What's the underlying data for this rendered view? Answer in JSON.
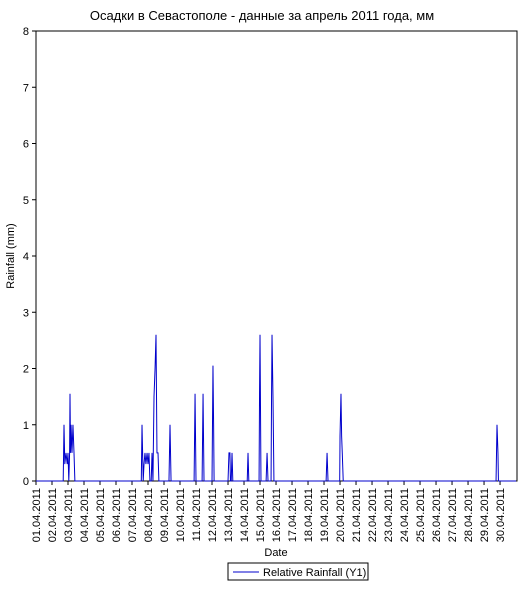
{
  "chart_data": {
    "type": "line",
    "title": "Осадки в Севастополе - данные за апрель 2011 года, мм",
    "x_label": "Date",
    "y_label": "Rainfall (mm)",
    "xlim": [
      1,
      31.06
    ],
    "ylim": [
      0,
      8
    ],
    "yticks": [
      0,
      1,
      2,
      3,
      4,
      5,
      6,
      7,
      8
    ],
    "xticks": [
      {
        "value": 1,
        "label": "01.04.2011"
      },
      {
        "value": 2,
        "label": "02.04.2011"
      },
      {
        "value": 3,
        "label": "03.04.2011"
      },
      {
        "value": 4,
        "label": "04.04.2011"
      },
      {
        "value": 5,
        "label": "05.04.2011"
      },
      {
        "value": 6,
        "label": "06.04.2011"
      },
      {
        "value": 7,
        "label": "07.04.2011"
      },
      {
        "value": 8,
        "label": "08.04.2011"
      },
      {
        "value": 9,
        "label": "09.04.2011"
      },
      {
        "value": 10,
        "label": "10.04.2011"
      },
      {
        "value": 11,
        "label": "11.04.2011"
      },
      {
        "value": 12,
        "label": "12.04.2011"
      },
      {
        "value": 13,
        "label": "13.04.2011"
      },
      {
        "value": 14,
        "label": "14.04.2011"
      },
      {
        "value": 15,
        "label": "15.04.2011"
      },
      {
        "value": 16,
        "label": "16.04.2011"
      },
      {
        "value": 17,
        "label": "17.04.2011"
      },
      {
        "value": 18,
        "label": "18.04.2011"
      },
      {
        "value": 19,
        "label": "19.04.2011"
      },
      {
        "value": 20,
        "label": "20.04.2011"
      },
      {
        "value": 21,
        "label": "21.04.2011"
      },
      {
        "value": 22,
        "label": "22.04.2011"
      },
      {
        "value": 23,
        "label": "23.04.2011"
      },
      {
        "value": 24,
        "label": "24.04.2011"
      },
      {
        "value": 25,
        "label": "25.04.2011"
      },
      {
        "value": 26,
        "label": "26.04.2011"
      },
      {
        "value": 27,
        "label": "27.04.2011"
      },
      {
        "value": 28,
        "label": "28.04.2011"
      },
      {
        "value": 29,
        "label": "29.04.2011"
      },
      {
        "value": 30,
        "label": "30.04.2011"
      }
    ],
    "x": [
      1,
      2.7,
      2.75,
      2.8,
      2.875,
      2.95,
      3.0,
      3.05,
      3.1,
      3.125,
      3.16,
      3.19,
      3.25,
      3.31,
      3.375,
      3.43,
      7.58,
      7.625,
      7.7,
      7.75,
      7.81,
      7.87,
      7.94,
      8.0,
      8.06,
      8.12,
      8.2,
      8.25,
      8.31,
      8.33,
      8.375,
      8.44,
      8.5,
      8.56,
      8.625,
      8.68,
      9.31,
      9.375,
      9.44,
      10.88,
      10.94,
      11.0,
      11.38,
      11.44,
      11.47,
      11.5,
      12.0,
      12.06,
      12.1,
      12.13,
      13.0,
      13.06,
      13.12,
      13.15,
      13.2,
      13.25,
      13.3,
      14.2,
      14.25,
      14.3,
      14.94,
      14.97,
      15.0,
      15.06,
      15.38,
      15.44,
      15.5,
      15.69,
      15.72,
      15.75,
      15.81,
      15.87,
      19.13,
      19.19,
      19.25,
      19.98,
      20.0,
      20.06,
      20.1,
      20.14,
      20.2,
      29.75,
      29.81,
      29.87,
      29.9,
      31
    ],
    "series": [
      {
        "name": "Relative Rainfall (Y1)",
        "color": "#0000cc",
        "values": [
          0,
          0,
          1.0,
          0.3,
          0.5,
          0.3,
          0.5,
          0,
          0.5,
          1.55,
          0.5,
          1.0,
          0.5,
          1.0,
          0.5,
          0,
          0,
          1.0,
          0,
          0.3,
          0.5,
          0.3,
          0.5,
          0.3,
          0.5,
          0,
          0,
          0.5,
          0,
          0.5,
          1.5,
          2.0,
          2.6,
          0.5,
          0.5,
          0,
          0,
          1.0,
          0,
          0,
          1.55,
          0,
          0,
          1.55,
          0.75,
          0,
          0,
          2.05,
          1.0,
          0,
          0,
          0.5,
          0.5,
          0,
          0,
          0.5,
          0,
          0,
          0.5,
          0,
          0,
          1.55,
          2.6,
          0,
          0,
          0.5,
          0,
          0,
          1.5,
          2.6,
          1.5,
          0,
          0,
          0.5,
          0,
          0,
          0.8,
          1.55,
          0.8,
          0.5,
          0,
          0,
          1.0,
          0.5,
          0,
          0
        ]
      }
    ]
  }
}
